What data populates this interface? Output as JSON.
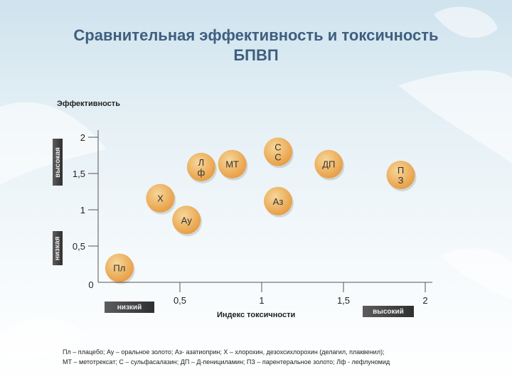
{
  "slide": {
    "title_line1": "Сравнительная эффективность и токсичность",
    "title_line2": "БПВП",
    "y_axis_title": "Эффективность",
    "x_axis_title": "Индекс токсичности",
    "y_high_tag": "высокая",
    "y_low_tag": "низкая",
    "x_low_tag": "низкий",
    "x_high_tag": "высокий",
    "footnote_line1": "Пл – плацебо; Ау – оральное золото; Аз- азатиоприн; Х – хлорохин, дезохсихлорохин (делагил, плаквенил);",
    "footnote_line2": "МТ – метотрексат; С – сульфасалазин; ДП – Д-пенициламин; ПЗ – парентеральное золото; Лф - лефлуномид"
  },
  "chart_data": {
    "type": "scatter",
    "title": "Сравнительная эффективность и токсичность БПВП",
    "xlabel": "Индекс токсичности",
    "ylabel": "Эффективность",
    "xlim": [
      0,
      2
    ],
    "ylim": [
      0,
      2
    ],
    "x_ticks": [
      {
        "value": 0,
        "label": "0"
      },
      {
        "value": 0.5,
        "label": "0,5"
      },
      {
        "value": 1,
        "label": "1"
      },
      {
        "value": 1.5,
        "label": "1,5"
      },
      {
        "value": 2,
        "label": "2"
      }
    ],
    "y_ticks": [
      {
        "value": 0.5,
        "label": "0,5"
      },
      {
        "value": 1,
        "label": "1"
      },
      {
        "value": 1.5,
        "label": "1,5"
      },
      {
        "value": 2,
        "label": "2"
      }
    ],
    "point_color_light": "#f6d79a",
    "point_color_dark": "#e79a3e",
    "points": [
      {
        "label": "Пл",
        "lines": [
          "Пл"
        ],
        "x": 0.13,
        "y": 0.2
      },
      {
        "label": "Ау",
        "lines": [
          "Ау"
        ],
        "x": 0.54,
        "y": 0.86
      },
      {
        "label": "Х",
        "lines": [
          "Х"
        ],
        "x": 0.38,
        "y": 1.16
      },
      {
        "label": "Лф",
        "lines": [
          "Л",
          "ф"
        ],
        "x": 0.63,
        "y": 1.59
      },
      {
        "label": "МТ",
        "lines": [
          "МТ"
        ],
        "x": 0.82,
        "y": 1.63
      },
      {
        "label": "С",
        "lines": [
          "С",
          "С"
        ],
        "x": 1.1,
        "y": 1.8
      },
      {
        "label": "ДП",
        "lines": [
          "ДП"
        ],
        "x": 1.41,
        "y": 1.63
      },
      {
        "label": "Аз",
        "lines": [
          "Аз"
        ],
        "x": 1.1,
        "y": 1.12
      },
      {
        "label": "ПЗ",
        "lines": [
          "П",
          "З"
        ],
        "x": 1.85,
        "y": 1.48
      }
    ]
  }
}
